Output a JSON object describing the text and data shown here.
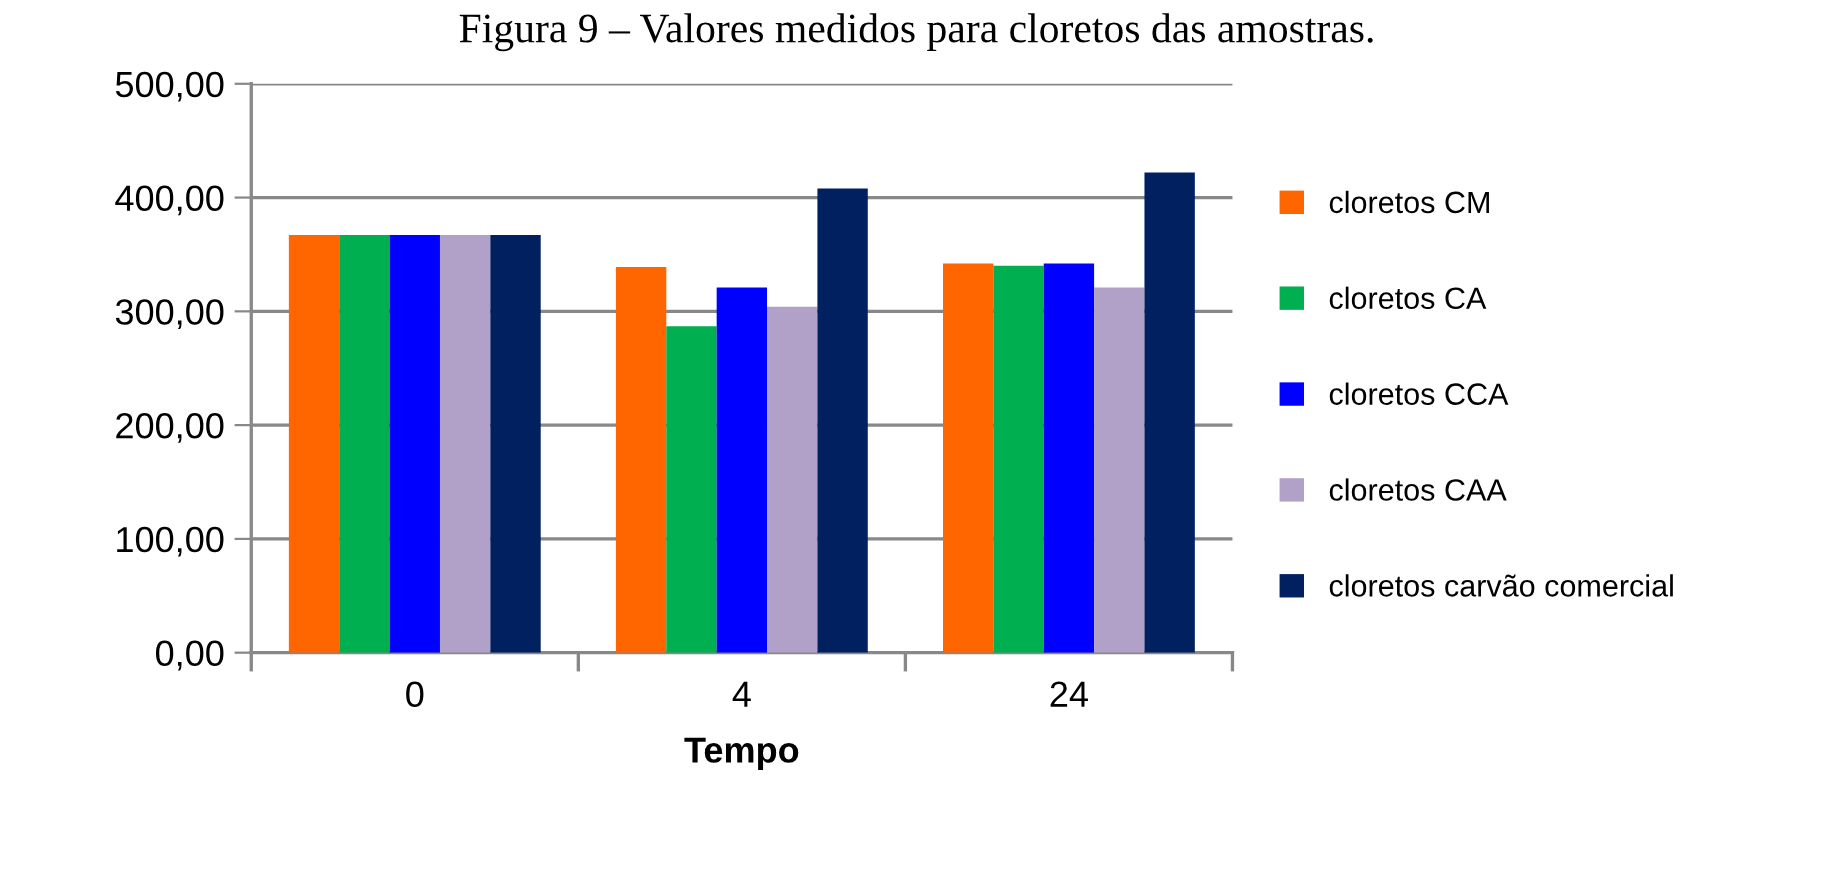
{
  "chart_data": {
    "type": "bar",
    "title": "Figura 9 – Valores medidos para cloretos das amostras.",
    "xlabel": "Tempo",
    "categories": [
      "0",
      "4",
      "24"
    ],
    "series": [
      {
        "name": "cloretos CM",
        "color": "#ff6600",
        "values": [
          367,
          339,
          342
        ]
      },
      {
        "name": "cloretos CA",
        "color": "#00b050",
        "values": [
          367,
          287,
          340
        ]
      },
      {
        "name": "cloretos CCA",
        "color": "#0000ff",
        "values": [
          367,
          321,
          342
        ]
      },
      {
        "name": "cloretos CAA",
        "color": "#b1a0c7",
        "values": [
          367,
          304,
          321
        ]
      },
      {
        "name": "cloretos carvão comercial",
        "color": "#002060",
        "values": [
          367,
          408,
          422
        ]
      }
    ],
    "ylim": [
      0,
      500
    ],
    "yticks": [
      {
        "value": 0,
        "label": "0,00"
      },
      {
        "value": 100,
        "label": "100,00"
      },
      {
        "value": 200,
        "label": "200,00"
      },
      {
        "value": 300,
        "label": "300,00"
      },
      {
        "value": 400,
        "label": "400,00"
      },
      {
        "value": 500,
        "label": "500,00"
      }
    ],
    "grid": "y",
    "legend": "right"
  }
}
